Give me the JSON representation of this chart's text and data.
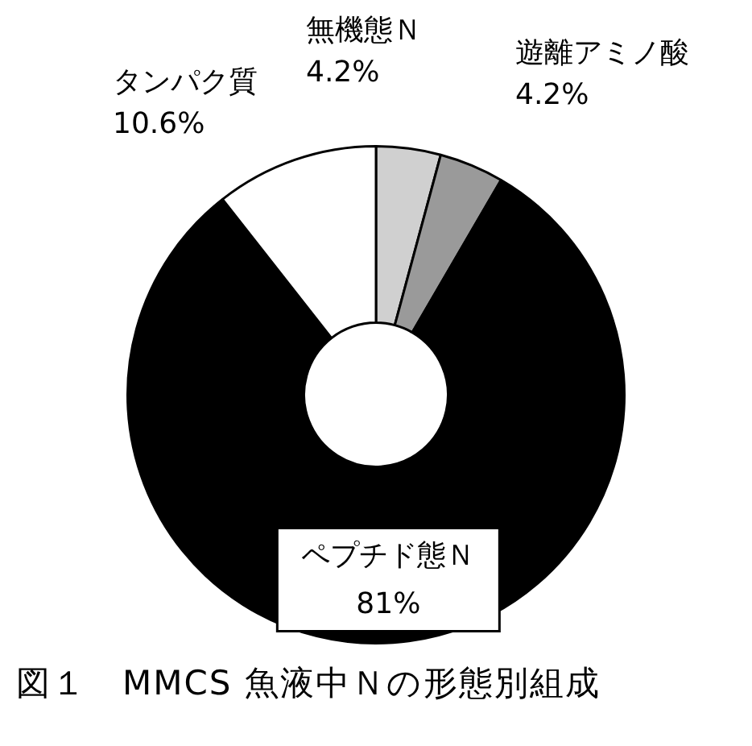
{
  "chart_data": {
    "type": "donut",
    "title": "図１　MMCS 魚液中Ｎの形態別組成",
    "categories": [
      "無機態Ｎ",
      "遊離アミノ酸",
      "ペプチド態Ｎ",
      "タンパク質"
    ],
    "values": [
      4.2,
      4.2,
      81,
      10.6
    ],
    "value_labels": [
      "4.2%",
      "4.2%",
      "81%",
      "10.6%"
    ],
    "colors": [
      "#d0d0d0",
      "#9a9a9a",
      "#000000",
      "#ffffff"
    ],
    "legend": false
  }
}
